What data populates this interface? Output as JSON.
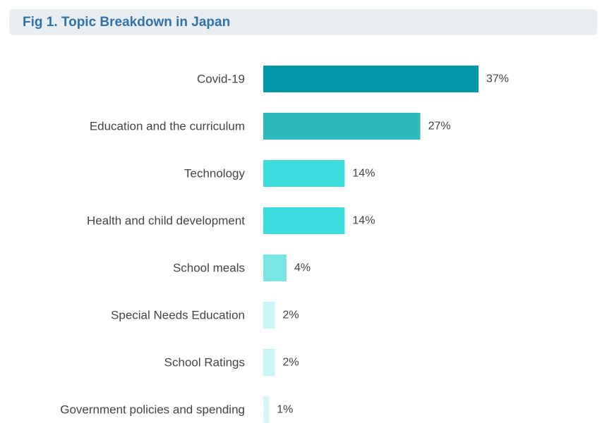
{
  "chart_data": {
    "type": "bar",
    "orientation": "horizontal",
    "title": "Fig 1. Topic Breakdown in Japan",
    "categories": [
      "Covid-19",
      "Education and the curriculum",
      "Technology",
      "Health and child development",
      "School meals",
      "Special Needs Education",
      "School Ratings",
      "Government policies and spending"
    ],
    "values": [
      37,
      27,
      14,
      14,
      4,
      2,
      2,
      1
    ],
    "value_labels": [
      "37%",
      "27%",
      "14%",
      "14%",
      "4%",
      "2%",
      "2%",
      "1%"
    ],
    "colors": [
      "#0097a7",
      "#2dbabf",
      "#3ddcde",
      "#3ddcde",
      "#79e6e6",
      "#c8f6f7",
      "#c8f6f7",
      "#d6f8f9"
    ],
    "xlabel": "",
    "ylabel": "",
    "xlim": [
      0,
      37
    ],
    "grid": false,
    "legend": "none"
  }
}
